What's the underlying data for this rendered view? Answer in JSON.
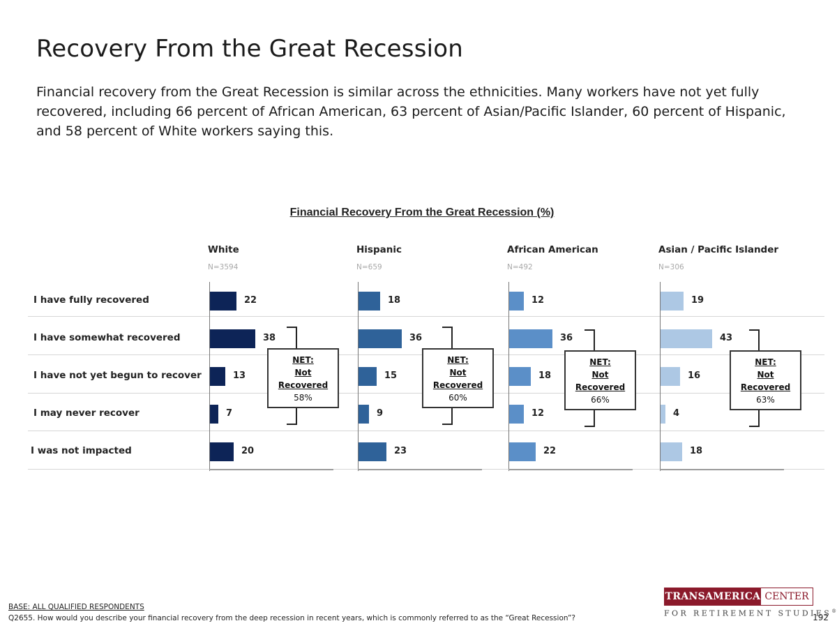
{
  "header": {
    "title": "Recovery From the Great Recession",
    "subtitle": "Financial recovery from the Great Recession is similar across the ethnicities. Many workers have not yet fully recovered, including 66 percent of African American, 63 percent of Asian/Pacific Islander, 60 percent of Hispanic, and 58 percent of White workers saying this."
  },
  "chart_data": {
    "type": "bar",
    "orientation": "horizontal",
    "title": "Financial Recovery From the Great Recession (%)",
    "categories": [
      "I have fully recovered",
      "I have somewhat recovered",
      "I have not yet begun to recover",
      "I may never recover",
      "I was not impacted"
    ],
    "series": [
      {
        "name": "White",
        "n": "N=3594",
        "color": "#0d2457",
        "values": [
          22,
          38,
          13,
          7,
          20
        ],
        "net_label": "NET:",
        "net_sub1": "Not",
        "net_sub2": "Recovered",
        "net_value": "58%"
      },
      {
        "name": "Hispanic",
        "n": "N=659",
        "color": "#2f6299",
        "values": [
          18,
          36,
          15,
          9,
          23
        ],
        "net_label": "NET:",
        "net_sub1": "Not",
        "net_sub2": "Recovered",
        "net_value": "60%"
      },
      {
        "name": "African American",
        "n": "N=492",
        "color": "#5b8fc8",
        "values": [
          12,
          36,
          18,
          12,
          22
        ],
        "net_label": "NET:",
        "net_sub1": "Not",
        "net_sub2": "Recovered",
        "net_value": "66%"
      },
      {
        "name": "Asian / Pacific Islander",
        "n": "N=306",
        "color": "#adc8e4",
        "values": [
          19,
          43,
          16,
          4,
          18
        ],
        "net_label": "NET:",
        "net_sub1": "Not",
        "net_sub2": "Recovered",
        "net_value": "63%"
      }
    ]
  },
  "footer": {
    "base": "BASE: ALL QUALIFIED RESPONDENTS",
    "question": "Q2655. How would you describe your financial recovery from the deep recession in recent years, which is commonly referred to as the “Great Recession”?",
    "page_number": "192"
  },
  "logo": {
    "name_a": "TRANSAMERICA",
    "name_b": "CENTER",
    "tagline": "FOR RETIREMENT STUDIES",
    "mark": "®"
  }
}
